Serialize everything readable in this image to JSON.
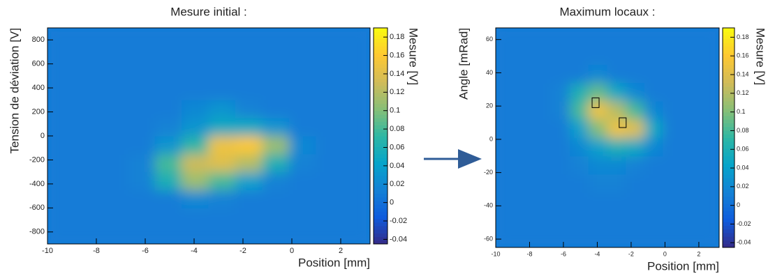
{
  "chart_data": [
    {
      "type": "heatmap",
      "title": "Mesure initial :",
      "x_label": "Position [mm]",
      "y_label": "Tension de déviation [V]",
      "colorbar_label": "Mesure [V]",
      "xlim": [
        -10,
        3.2
      ],
      "ylim": [
        -900,
        900
      ],
      "zlim": [
        -0.045,
        0.19
      ],
      "xticks": [
        -10,
        -8,
        -6,
        -4,
        -2,
        0,
        2
      ],
      "yticks": [
        -800,
        -600,
        -400,
        -200,
        0,
        200,
        400,
        600,
        800
      ],
      "zticks": [
        -0.04,
        -0.02,
        0,
        0.02,
        0.04,
        0.06,
        0.08,
        0.1,
        0.12,
        0.14,
        0.16,
        0.18
      ],
      "colormap": [
        "#352a87",
        "#0f5cdd",
        "#1481d6",
        "#06a4ca",
        "#2eb7a4",
        "#87bf77",
        "#d1bb59",
        "#fec832",
        "#f9fb0e"
      ],
      "xbins": [
        -10,
        -8.9,
        -7.8,
        -6.7,
        -5.6,
        -4.5,
        -3.4,
        -2.3,
        -1.2,
        -0.1,
        1.0,
        2.1,
        3.2
      ],
      "ybins": [
        -900,
        -750,
        -600,
        -450,
        -300,
        -150,
        0,
        150,
        300,
        450,
        600,
        750,
        900
      ],
      "z": [
        [
          0.01,
          0.01,
          0.01,
          0.01,
          0.01,
          0.01,
          0.01,
          0.01,
          0.01,
          0.01,
          0.01,
          0.01
        ],
        [
          0.01,
          0.01,
          0.01,
          0.01,
          0.01,
          0.01,
          0.01,
          0.01,
          0.01,
          0.01,
          0.01,
          0.01
        ],
        [
          0.01,
          0.01,
          0.01,
          0.01,
          0.01,
          0.02,
          0.015,
          0.01,
          0.01,
          0.01,
          0.01,
          0.01
        ],
        [
          0.01,
          0.01,
          0.01,
          0.015,
          0.06,
          0.11,
          0.08,
          0.04,
          0.015,
          0.01,
          0.01,
          0.01
        ],
        [
          0.01,
          0.01,
          0.01,
          0.015,
          0.08,
          0.13,
          0.14,
          0.12,
          0.06,
          0.015,
          0.01,
          0.01
        ],
        [
          0.01,
          0.01,
          0.01,
          0.01,
          0.03,
          0.07,
          0.15,
          0.16,
          0.11,
          0.02,
          0.01,
          0.01
        ],
        [
          0.01,
          0.01,
          0.01,
          0.01,
          0.015,
          0.03,
          0.05,
          0.05,
          0.03,
          0.01,
          0.01,
          0.01
        ],
        [
          0.01,
          0.01,
          0.01,
          0.01,
          0.01,
          0.02,
          0.03,
          0.015,
          0.01,
          0.01,
          0.01,
          0.01
        ],
        [
          0.01,
          0.01,
          0.01,
          0.01,
          0.01,
          0.01,
          0.01,
          0.01,
          0.01,
          0.01,
          0.01,
          0.01
        ],
        [
          0.01,
          0.01,
          0.01,
          0.01,
          0.01,
          0.01,
          0.01,
          0.01,
          0.01,
          0.01,
          0.01,
          0.01
        ],
        [
          0.01,
          0.01,
          0.01,
          0.01,
          0.01,
          0.01,
          0.01,
          0.01,
          0.01,
          0.01,
          0.01,
          0.01
        ],
        [
          0.01,
          0.01,
          0.01,
          0.01,
          0.01,
          0.01,
          0.01,
          0.01,
          0.01,
          0.01,
          0.01,
          0.01
        ]
      ]
    },
    {
      "type": "heatmap",
      "title": "Maximum locaux :",
      "x_label": "Position [mm]",
      "y_label": "Angle [mRad]",
      "colorbar_label": "Mesure [V]",
      "xlim": [
        -10,
        3.2
      ],
      "ylim": [
        -65,
        67
      ],
      "zlim": [
        -0.045,
        0.19
      ],
      "xticks": [
        -10,
        -8,
        -6,
        -4,
        -2,
        0,
        2
      ],
      "yticks": [
        -60,
        -40,
        -20,
        0,
        20,
        40,
        60
      ],
      "zticks": [
        -0.04,
        -0.02,
        0,
        0.02,
        0.04,
        0.06,
        0.08,
        0.1,
        0.12,
        0.14,
        0.16,
        0.18
      ],
      "colormap": [
        "#352a87",
        "#0f5cdd",
        "#1481d6",
        "#06a4ca",
        "#2eb7a4",
        "#87bf77",
        "#d1bb59",
        "#fec832",
        "#f9fb0e"
      ],
      "xbins": [
        -10,
        -8.9,
        -7.8,
        -6.7,
        -5.6,
        -4.5,
        -3.4,
        -2.3,
        -1.2,
        -0.1,
        1.0,
        2.1,
        3.2
      ],
      "ybins": [
        -65,
        -54,
        -43,
        -32,
        -21,
        -10,
        1,
        12,
        23,
        34,
        45,
        56,
        67
      ],
      "z": [
        [
          0.01,
          0.01,
          0.01,
          0.01,
          0.01,
          0.01,
          0.01,
          0.01,
          0.01,
          0.01,
          0.01,
          0.01
        ],
        [
          0.01,
          0.01,
          0.01,
          0.01,
          0.01,
          0.01,
          0.01,
          0.01,
          0.01,
          0.01,
          0.01,
          0.01
        ],
        [
          0.01,
          0.01,
          0.01,
          0.01,
          0.01,
          0.01,
          0.01,
          0.01,
          0.01,
          0.01,
          0.01,
          0.01
        ],
        [
          0.01,
          0.01,
          0.01,
          0.01,
          0.01,
          0.015,
          0.015,
          0.01,
          0.01,
          0.01,
          0.01,
          0.01
        ],
        [
          0.01,
          0.01,
          0.01,
          0.01,
          0.015,
          0.02,
          0.02,
          0.015,
          0.01,
          0.01,
          0.01,
          0.01
        ],
        [
          0.01,
          0.01,
          0.01,
          0.01,
          0.02,
          0.04,
          0.06,
          0.05,
          0.02,
          0.01,
          0.01,
          0.01
        ],
        [
          0.01,
          0.01,
          0.01,
          0.01,
          0.04,
          0.1,
          0.15,
          0.14,
          0.05,
          0.01,
          0.01,
          0.01
        ],
        [
          0.01,
          0.01,
          0.01,
          0.015,
          0.08,
          0.15,
          0.12,
          0.08,
          0.02,
          0.01,
          0.01,
          0.01
        ],
        [
          0.01,
          0.01,
          0.01,
          0.015,
          0.06,
          0.09,
          0.05,
          0.02,
          0.01,
          0.01,
          0.01,
          0.01
        ],
        [
          0.01,
          0.01,
          0.01,
          0.01,
          0.01,
          0.02,
          0.01,
          0.01,
          0.01,
          0.01,
          0.01,
          0.01
        ],
        [
          0.01,
          0.01,
          0.01,
          0.01,
          0.01,
          0.01,
          0.01,
          0.01,
          0.01,
          0.01,
          0.01,
          0.01
        ],
        [
          0.01,
          0.01,
          0.01,
          0.01,
          0.01,
          0.01,
          0.01,
          0.01,
          0.01,
          0.01,
          0.01,
          0.01
        ]
      ],
      "markers": {
        "x": [
          -4.1,
          -2.5
        ],
        "y": [
          22,
          10
        ]
      }
    }
  ]
}
